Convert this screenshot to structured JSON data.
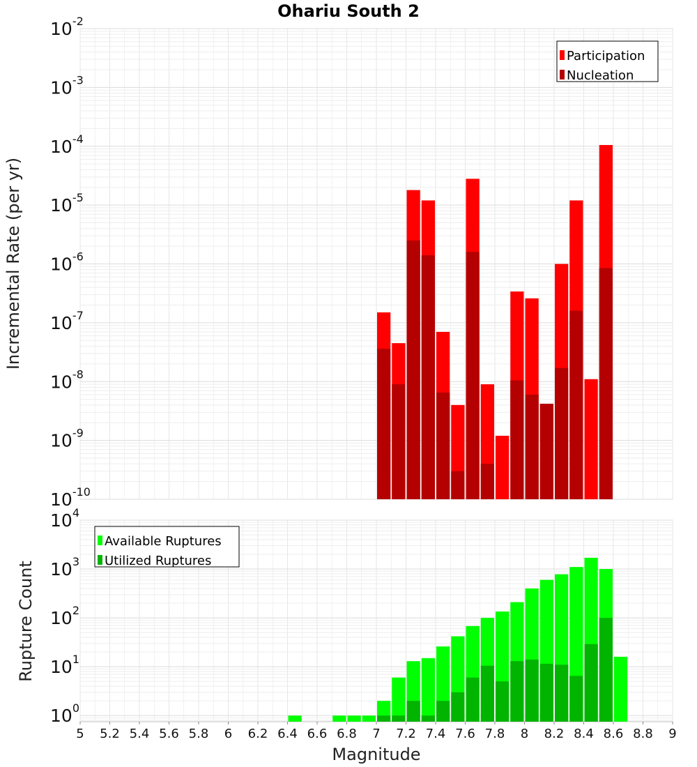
{
  "chart_data": [
    {
      "type": "bar",
      "title": "Ohariu South 2",
      "xlabel": "",
      "ylabel": "Incremental Rate (per yr)",
      "y_scale": "log",
      "ylim": [
        1e-10,
        0.01
      ],
      "xlim": [
        5,
        9
      ],
      "bar_centers": [
        7.05,
        7.15,
        7.25,
        7.35,
        7.45,
        7.55,
        7.65,
        7.75,
        7.85,
        7.95,
        8.05,
        8.15,
        8.25,
        8.35,
        8.45,
        8.55
      ],
      "legend": "top-right",
      "grid": true,
      "series": [
        {
          "name": "Participation",
          "color": "#ff0000",
          "values": [
            1.5e-07,
            4.5e-08,
            1.8e-05,
            1.2e-05,
            7e-08,
            4e-09,
            2.8e-05,
            9e-09,
            1.2e-09,
            3.4e-07,
            2.6e-07,
            4.2e-09,
            1e-06,
            1.2e-05,
            1.1e-08,
            0.000105
          ]
        },
        {
          "name": "Nucleation",
          "color": "#b40000",
          "values": [
            3.6e-08,
            9e-09,
            2.5e-06,
            1.4e-06,
            6.5e-09,
            3e-10,
            1.6e-06,
            4e-10,
            null,
            1.05e-08,
            6e-09,
            4.2e-09,
            1.7e-08,
            1.6e-07,
            null,
            8.5e-07
          ]
        }
      ]
    },
    {
      "type": "bar",
      "title": "",
      "xlabel": "Magnitude",
      "ylabel": "Rupture Count",
      "y_scale": "log",
      "ylim": [
        0.75,
        10000
      ],
      "xlim": [
        5,
        9
      ],
      "x_ticks": [
        "5",
        "5.2",
        "5.4",
        "5.6",
        "5.8",
        "6",
        "6.2",
        "6.4",
        "6.6",
        "6.8",
        "7",
        "7.2",
        "7.4",
        "7.6",
        "7.8",
        "8",
        "8.2",
        "8.4",
        "8.6",
        "8.8",
        "9"
      ],
      "legend": "top-left",
      "grid": true,
      "series": [
        {
          "name": "Available Ruptures",
          "color": "#00ff00",
          "x": [
            6.45,
            6.75,
            6.85,
            6.95,
            7.05,
            7.15,
            7.25,
            7.35,
            7.45,
            7.55,
            7.65,
            7.75,
            7.85,
            7.95,
            8.05,
            8.15,
            8.25,
            8.35,
            8.45,
            8.55,
            8.65
          ],
          "values": [
            1,
            1,
            1,
            1,
            2,
            6,
            13,
            15,
            26,
            42,
            68,
            100,
            135,
            210,
            400,
            600,
            780,
            1100,
            1700,
            1000,
            16
          ]
        },
        {
          "name": "Utilized Ruptures",
          "color": "#00b400",
          "x": [
            7.05,
            7.15,
            7.25,
            7.35,
            7.45,
            7.55,
            7.65,
            7.75,
            7.85,
            7.95,
            8.05,
            8.15,
            8.25,
            8.35,
            8.45,
            8.55
          ],
          "values": [
            1,
            1,
            2,
            1,
            2,
            3,
            6,
            10.5,
            5,
            13,
            14,
            11.5,
            11,
            6.5,
            29,
            100
          ]
        }
      ]
    }
  ]
}
